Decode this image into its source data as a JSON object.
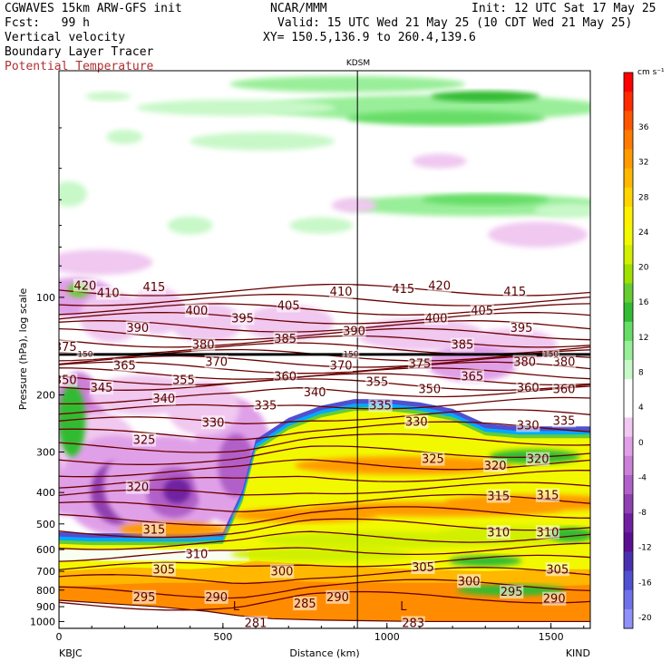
{
  "header": {
    "line1_left": "CGWAVES 15km ARW-GFS init",
    "line1_mid": "NCAR/MMM",
    "line1_right": "Init: 12 UTC Sat 17 May 25",
    "line2_left": "Fcst:   99 h",
    "line2_right": "Valid: 15 UTC Wed 21 May 25 (10 CDT Wed 21 May 25)",
    "line3_left": "Vertical velocity",
    "line3_right": "XY= 150.5,136.9 to 260.4,139.6",
    "line4_left": "Boundary Layer Tracer",
    "line5_left": "Potential Temperature"
  },
  "chart_data": {
    "type": "heatmap",
    "title": "KDSM",
    "xlabel": "Distance (km)",
    "ylabel": "Pressure (hPa), log scale",
    "x_ticks": [
      0,
      500,
      1000,
      1500
    ],
    "xlim": [
      0,
      1620
    ],
    "y_ticks": [
      100,
      200,
      300,
      400,
      500,
      600,
      700,
      800,
      900,
      1000
    ],
    "ylim": [
      1050,
      20
    ],
    "y_scale": "log",
    "left_station": "KBJC",
    "right_station": "KIND",
    "kdsm_distance_km": 910,
    "colorbar": {
      "unit": "cm s⁻¹",
      "labels": [
        36,
        32,
        28,
        24,
        20,
        16,
        12,
        8,
        4,
        0,
        -4,
        -8,
        -12,
        -16,
        -20
      ],
      "colors": [
        "#ff0000",
        "#ff2a00",
        "#ff5500",
        "#ff7a00",
        "#ff9a00",
        "#ffb700",
        "#ffd400",
        "#fff000",
        "#f2f800",
        "#d0f000",
        "#a0e000",
        "#66cc33",
        "#33bb33",
        "#66dd66",
        "#99ee99",
        "#c8f8c8",
        "#ffffff",
        "#ffffff",
        "#f0c8f0",
        "#e0a0e8",
        "#cc80d8",
        "#b060c8",
        "#9040b0",
        "#7020a0",
        "#5a1090",
        "#4a30b0",
        "#5050d0",
        "#7070e8",
        "#9090f8"
      ]
    },
    "theta_labels": [
      {
        "t": "420",
        "x": 80,
        "p": 92
      },
      {
        "t": "415",
        "x": 1050,
        "p": 94
      },
      {
        "t": "420",
        "x": 1160,
        "p": 92
      },
      {
        "t": "410",
        "x": 860,
        "p": 96
      },
      {
        "t": "415",
        "x": 1390,
        "p": 96
      },
      {
        "t": "410",
        "x": 150,
        "p": 97
      },
      {
        "t": "415",
        "x": 290,
        "p": 93
      },
      {
        "t": "405",
        "x": 700,
        "p": 106
      },
      {
        "t": "405",
        "x": 1290,
        "p": 110
      },
      {
        "t": "400",
        "x": 420,
        "p": 110
      },
      {
        "t": "400",
        "x": 1150,
        "p": 116
      },
      {
        "t": "395",
        "x": 560,
        "p": 116
      },
      {
        "t": "395",
        "x": 1410,
        "p": 124
      },
      {
        "t": "390",
        "x": 240,
        "p": 124
      },
      {
        "t": "390",
        "x": 900,
        "p": 127
      },
      {
        "t": "385",
        "x": 690,
        "p": 134
      },
      {
        "t": "385",
        "x": 1230,
        "p": 140
      },
      {
        "t": "380",
        "x": 440,
        "p": 140
      },
      {
        "t": "380",
        "x": 1420,
        "p": 158
      },
      {
        "t": "380",
        "x": 1540,
        "p": 158
      },
      {
        "t": "375",
        "x": 20,
        "p": 142
      },
      {
        "t": "375",
        "x": 1100,
        "p": 160
      },
      {
        "t": "370",
        "x": 480,
        "p": 158
      },
      {
        "t": "370",
        "x": 860,
        "p": 162
      },
      {
        "t": "365",
        "x": 200,
        "p": 162
      },
      {
        "t": "365",
        "x": 1260,
        "p": 175
      },
      {
        "t": "360",
        "x": 690,
        "p": 175
      },
      {
        "t": "360",
        "x": 1430,
        "p": 190
      },
      {
        "t": "360",
        "x": 1540,
        "p": 192
      },
      {
        "t": "355",
        "x": 380,
        "p": 180
      },
      {
        "t": "355",
        "x": 970,
        "p": 182
      },
      {
        "t": "350",
        "x": 20,
        "p": 180
      },
      {
        "t": "350",
        "x": 1130,
        "p": 192
      },
      {
        "t": "345",
        "x": 130,
        "p": 190
      },
      {
        "t": "340",
        "x": 320,
        "p": 205
      },
      {
        "t": "340",
        "x": 780,
        "p": 196
      },
      {
        "t": "335",
        "x": 630,
        "p": 215
      },
      {
        "t": "335",
        "x": 980,
        "p": 215
      },
      {
        "t": "335",
        "x": 1540,
        "p": 240
      },
      {
        "t": "330",
        "x": 470,
        "p": 243
      },
      {
        "t": "330",
        "x": 1090,
        "p": 242
      },
      {
        "t": "330",
        "x": 1430,
        "p": 248
      },
      {
        "t": "325",
        "x": 260,
        "p": 275
      },
      {
        "t": "325",
        "x": 1140,
        "p": 315
      },
      {
        "t": "320",
        "x": 240,
        "p": 385
      },
      {
        "t": "320",
        "x": 1330,
        "p": 330
      },
      {
        "t": "320",
        "x": 1460,
        "p": 315
      },
      {
        "t": "315",
        "x": 290,
        "p": 520
      },
      {
        "t": "315",
        "x": 1340,
        "p": 410
      },
      {
        "t": "315",
        "x": 1490,
        "p": 408
      },
      {
        "t": "310",
        "x": 420,
        "p": 620
      },
      {
        "t": "310",
        "x": 1340,
        "p": 530
      },
      {
        "t": "310",
        "x": 1490,
        "p": 530
      },
      {
        "t": "305",
        "x": 320,
        "p": 690
      },
      {
        "t": "305",
        "x": 1110,
        "p": 680
      },
      {
        "t": "305",
        "x": 1520,
        "p": 690
      },
      {
        "t": "300",
        "x": 680,
        "p": 700
      },
      {
        "t": "300",
        "x": 1250,
        "p": 750
      },
      {
        "t": "295",
        "x": 260,
        "p": 840
      },
      {
        "t": "295",
        "x": 1380,
        "p": 810
      },
      {
        "t": "290",
        "x": 480,
        "p": 840
      },
      {
        "t": "290",
        "x": 850,
        "p": 840
      },
      {
        "t": "290",
        "x": 1510,
        "p": 850
      },
      {
        "t": "285",
        "x": 750,
        "p": 880
      },
      {
        "t": "281",
        "x": 600,
        "p": 1010
      },
      {
        "t": "283",
        "x": 1080,
        "p": 1010
      },
      {
        "t": "150",
        "x": 80,
        "p": 150
      },
      {
        "t": "150",
        "x": 890,
        "p": 150
      },
      {
        "t": "150",
        "x": 1500,
        "p": 150
      }
    ],
    "low_markers": [
      {
        "t": "L",
        "x": 540,
        "p": 895
      },
      {
        "t": "L",
        "x": 1050,
        "p": 895
      }
    ]
  }
}
